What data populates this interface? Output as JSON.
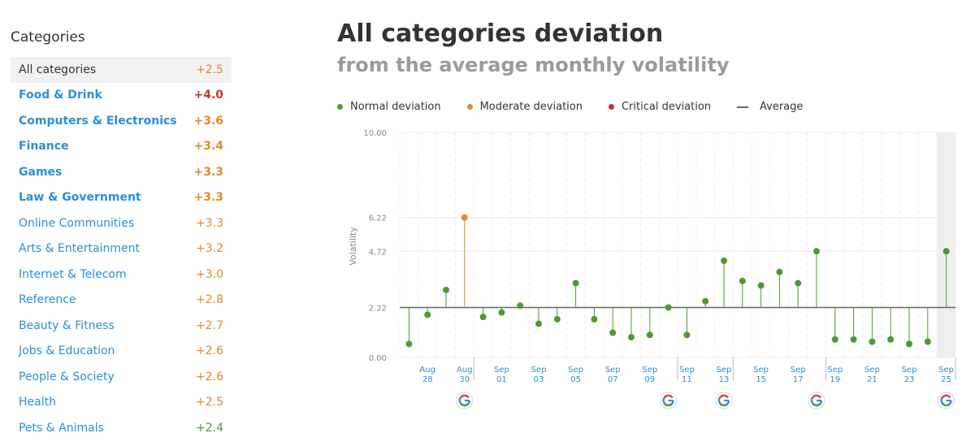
{
  "sidebar": {
    "title": "Categories",
    "items": [
      {
        "label": "All categories",
        "value": "+2.5",
        "value_color": "#e08a2c",
        "bold": false,
        "selected": true
      },
      {
        "label": "Food & Drink",
        "value": "+4.0",
        "value_color": "#c0392b",
        "bold": true,
        "selected": false
      },
      {
        "label": "Computers & Electronics",
        "value": "+3.6",
        "value_color": "#e08a2c",
        "bold": true,
        "selected": false
      },
      {
        "label": "Finance",
        "value": "+3.4",
        "value_color": "#e08a2c",
        "bold": true,
        "selected": false
      },
      {
        "label": "Games",
        "value": "+3.3",
        "value_color": "#e08a2c",
        "bold": true,
        "selected": false
      },
      {
        "label": "Law & Government",
        "value": "+3.3",
        "value_color": "#e08a2c",
        "bold": true,
        "selected": false
      },
      {
        "label": "Online Communities",
        "value": "+3.3",
        "value_color": "#e08a2c",
        "bold": false,
        "selected": false
      },
      {
        "label": "Arts & Entertainment",
        "value": "+3.2",
        "value_color": "#e08a2c",
        "bold": false,
        "selected": false
      },
      {
        "label": "Internet & Telecom",
        "value": "+3.0",
        "value_color": "#e08a2c",
        "bold": false,
        "selected": false
      },
      {
        "label": "Reference",
        "value": "+2.8",
        "value_color": "#e08a2c",
        "bold": false,
        "selected": false
      },
      {
        "label": "Beauty & Fitness",
        "value": "+2.7",
        "value_color": "#e08a2c",
        "bold": false,
        "selected": false
      },
      {
        "label": "Jobs & Education",
        "value": "+2.6",
        "value_color": "#e08a2c",
        "bold": false,
        "selected": false
      },
      {
        "label": "People & Society",
        "value": "+2.6",
        "value_color": "#e08a2c",
        "bold": false,
        "selected": false
      },
      {
        "label": "Health",
        "value": "+2.5",
        "value_color": "#e08a2c",
        "bold": false,
        "selected": false
      },
      {
        "label": "Pets & Animals",
        "value": "+2.4",
        "value_color": "#4e9a31",
        "bold": false,
        "selected": false
      }
    ]
  },
  "main": {
    "title": "All categories deviation",
    "subtitle": "from the average monthly volatility"
  },
  "legend": {
    "normal": {
      "label": "Normal deviation",
      "color": "#4e9a31"
    },
    "moderate": {
      "label": "Moderate deviation",
      "color": "#e08a2c"
    },
    "critical": {
      "label": "Critical deviation",
      "color": "#c0392b"
    },
    "average": {
      "label": "Average",
      "color": "#666666"
    }
  },
  "chart_data": {
    "type": "scatter",
    "ylabel": "Volatility",
    "ylim": [
      0,
      10
    ],
    "yticks": [
      "10.00",
      "6.22",
      "4.72",
      "2.22",
      "0.00"
    ],
    "ytick_values": [
      10,
      6.22,
      4.72,
      2.22,
      0
    ],
    "average": 2.22,
    "x": [
      "Aug 27",
      "Aug 28",
      "Aug 29",
      "Aug 30",
      "Aug 31",
      "Sep 01",
      "Sep 02",
      "Sep 03",
      "Sep 04",
      "Sep 05",
      "Sep 06",
      "Sep 07",
      "Sep 08",
      "Sep 09",
      "Sep 10",
      "Sep 11",
      "Sep 12",
      "Sep 13",
      "Sep 14",
      "Sep 15",
      "Sep 16",
      "Sep 17",
      "Sep 18",
      "Sep 19",
      "Sep 20",
      "Sep 21",
      "Sep 22",
      "Sep 23",
      "Sep 24",
      "Sep 25"
    ],
    "values": [
      0.6,
      1.9,
      3.0,
      6.22,
      1.8,
      2.0,
      2.3,
      1.5,
      1.7,
      3.3,
      1.7,
      1.1,
      0.9,
      1.0,
      2.22,
      1.0,
      2.5,
      4.3,
      3.4,
      3.2,
      3.8,
      3.3,
      4.72,
      0.8,
      0.8,
      0.7,
      0.8,
      0.6,
      0.7,
      4.72
    ],
    "deviation": [
      "normal",
      "normal",
      "normal",
      "moderate",
      "normal",
      "normal",
      "normal",
      "normal",
      "normal",
      "normal",
      "normal",
      "normal",
      "normal",
      "normal",
      "normal",
      "normal",
      "normal",
      "normal",
      "normal",
      "normal",
      "normal",
      "normal",
      "normal",
      "normal",
      "normal",
      "normal",
      "normal",
      "normal",
      "normal",
      "normal"
    ],
    "xtick_labels": [
      {
        "index": 1,
        "month": "Aug",
        "day": "28"
      },
      {
        "index": 3,
        "month": "Aug",
        "day": "30"
      },
      {
        "index": 5,
        "month": "Sep",
        "day": "01"
      },
      {
        "index": 7,
        "month": "Sep",
        "day": "03"
      },
      {
        "index": 9,
        "month": "Sep",
        "day": "05"
      },
      {
        "index": 11,
        "month": "Sep",
        "day": "07"
      },
      {
        "index": 13,
        "month": "Sep",
        "day": "09"
      },
      {
        "index": 15,
        "month": "Sep",
        "day": "11"
      },
      {
        "index": 17,
        "month": "Sep",
        "day": "13"
      },
      {
        "index": 19,
        "month": "Sep",
        "day": "15"
      },
      {
        "index": 21,
        "month": "Sep",
        "day": "17"
      },
      {
        "index": 23,
        "month": "Sep",
        "day": "19"
      },
      {
        "index": 25,
        "month": "Sep",
        "day": "21"
      },
      {
        "index": 27,
        "month": "Sep",
        "day": "23"
      },
      {
        "index": 29,
        "month": "Sep",
        "day": "25"
      }
    ],
    "google_update_markers": [
      3,
      14,
      17,
      22,
      29
    ],
    "google_marker_letter": "G",
    "highlighted_index": 29
  }
}
